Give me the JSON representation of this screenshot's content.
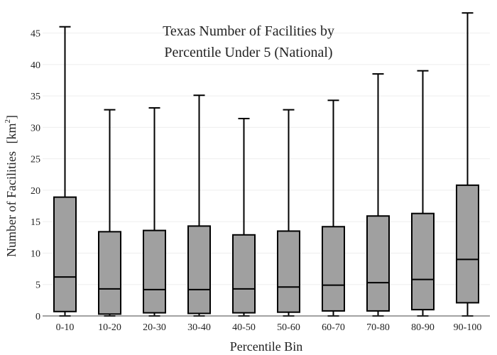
{
  "chart_data": {
    "type": "box",
    "title_lines": [
      "Texas Number of Facilities by",
      "Percentile Under 5 (National)"
    ],
    "xlabel": "Percentile Bin",
    "ylabel": "Number of Facilities",
    "ylabel_unit": "km",
    "ylabel_unit_sup": "2",
    "ylim": [
      0,
      48
    ],
    "yticks": [
      0,
      5,
      10,
      15,
      20,
      25,
      30,
      35,
      40,
      45
    ],
    "grid": true,
    "categories": [
      "0-10",
      "10-20",
      "20-30",
      "30-40",
      "40-50",
      "50-60",
      "60-70",
      "70-80",
      "80-90",
      "90-100"
    ],
    "boxes": [
      {
        "min": 0,
        "q1": 0.7,
        "median": 6.2,
        "q3": 18.9,
        "max": 46.0
      },
      {
        "min": 0,
        "q1": 0.3,
        "median": 4.3,
        "q3": 13.4,
        "max": 32.8
      },
      {
        "min": 0,
        "q1": 0.5,
        "median": 4.2,
        "q3": 13.6,
        "max": 33.1
      },
      {
        "min": 0,
        "q1": 0.4,
        "median": 4.2,
        "q3": 14.3,
        "max": 35.1
      },
      {
        "min": 0,
        "q1": 0.5,
        "median": 4.3,
        "q3": 12.9,
        "max": 31.4
      },
      {
        "min": 0,
        "q1": 0.6,
        "median": 4.6,
        "q3": 13.5,
        "max": 32.8
      },
      {
        "min": 0,
        "q1": 0.8,
        "median": 4.9,
        "q3": 14.2,
        "max": 34.3
      },
      {
        "min": 0,
        "q1": 0.8,
        "median": 5.3,
        "q3": 15.9,
        "max": 38.5
      },
      {
        "min": 0,
        "q1": 1.0,
        "median": 5.8,
        "q3": 16.3,
        "max": 39.0
      },
      {
        "min": 0,
        "q1": 2.1,
        "median": 9.0,
        "q3": 20.8,
        "max": 48.2
      }
    ],
    "colors": {
      "box_fill": "#a0a0a0",
      "line": "#000000",
      "grid": "#eeeeee"
    }
  }
}
